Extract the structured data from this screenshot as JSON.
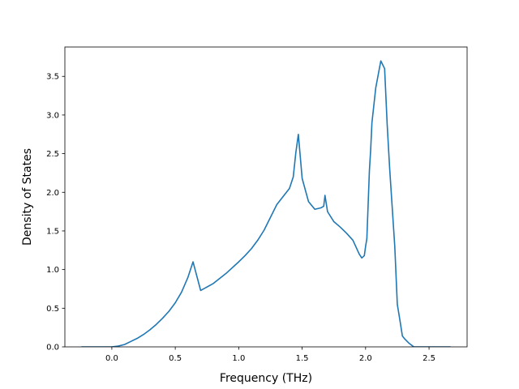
{
  "chart_data": {
    "type": "line",
    "title": "",
    "xlabel": "Frequency (THz)",
    "ylabel": "Density of States",
    "xlim": [
      -0.37,
      2.8
    ],
    "ylim": [
      0,
      3.88
    ],
    "grid": false,
    "xticks": [
      0.0,
      0.5,
      1.0,
      1.5,
      2.0,
      2.5
    ],
    "xtick_labels": [
      "0.0",
      "0.5",
      "1.0",
      "1.5",
      "2.0",
      "2.5"
    ],
    "yticks": [
      0.0,
      0.5,
      1.0,
      1.5,
      2.0,
      2.5,
      3.0,
      3.5
    ],
    "ytick_labels": [
      "0.0",
      "0.5",
      "1.0",
      "1.5",
      "2.0",
      "2.5",
      "3.0",
      "3.5"
    ],
    "series": [
      {
        "color": "#1f77b4",
        "x": [
          -0.24,
          -0.1,
          0.0,
          0.05,
          0.1,
          0.15,
          0.2,
          0.25,
          0.3,
          0.35,
          0.4,
          0.45,
          0.5,
          0.55,
          0.6,
          0.62,
          0.64,
          0.7,
          0.8,
          0.9,
          1.0,
          1.05,
          1.1,
          1.15,
          1.2,
          1.3,
          1.4,
          1.43,
          1.45,
          1.47,
          1.5,
          1.55,
          1.6,
          1.65,
          1.67,
          1.68,
          1.7,
          1.75,
          1.8,
          1.85,
          1.9,
          1.95,
          1.97,
          1.99,
          2.0,
          2.01,
          2.03,
          2.04,
          2.05,
          2.08,
          2.12,
          2.15,
          2.17,
          2.19,
          2.21,
          2.23,
          2.25,
          2.27,
          2.29,
          2.31,
          2.34,
          2.38,
          2.41,
          2.43,
          2.5,
          2.67
        ],
        "y": [
          0.0,
          0.0,
          0.0,
          0.01,
          0.03,
          0.07,
          0.11,
          0.16,
          0.22,
          0.29,
          0.37,
          0.46,
          0.57,
          0.71,
          0.9,
          1.0,
          1.1,
          0.73,
          0.82,
          0.95,
          1.1,
          1.18,
          1.27,
          1.38,
          1.51,
          1.84,
          2.05,
          2.2,
          2.51,
          2.75,
          2.18,
          1.88,
          1.78,
          1.8,
          1.82,
          1.96,
          1.75,
          1.62,
          1.55,
          1.47,
          1.38,
          1.2,
          1.15,
          1.18,
          1.3,
          1.4,
          2.28,
          2.55,
          2.9,
          3.35,
          3.7,
          3.6,
          2.88,
          2.3,
          1.8,
          1.3,
          0.55,
          0.35,
          0.14,
          0.1,
          0.05,
          0.0,
          0.0,
          0.0,
          0.0,
          0.0
        ]
      }
    ]
  }
}
